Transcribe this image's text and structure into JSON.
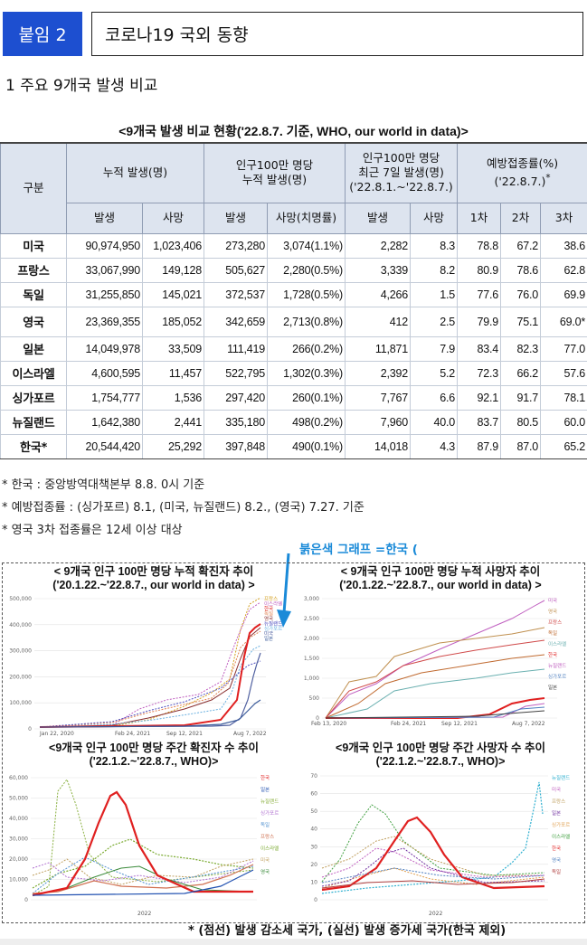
{
  "header": {
    "badge": "붙임 2",
    "title": "코로나19 국외 동향"
  },
  "section": {
    "title": "1 주요 9개국 발생 비교"
  },
  "table": {
    "caption": "<9개국 발생 비교 현황('22.8.7. 기준, WHO, our world in data)>",
    "group_headers": {
      "category": "구분",
      "cumulative": "누적 발생(명)",
      "per_million_line1": "인구100만 명당",
      "per_million_line2": "누적 발생(명)",
      "recent_line1": "인구100만 명당",
      "recent_line2": "최근 7일 발생(명)",
      "recent_line3": "('22.8.1.~'22.8.7.)",
      "vaccine_line1": "예방접종률(%)",
      "vaccine_line2": "('22.8.7.)",
      "vaccine_mark": "*"
    },
    "sub_headers": {
      "cases": "발생",
      "deaths": "사망",
      "pm_cases": "발생",
      "pm_deaths": "사망(치명률)",
      "r_cases": "발생",
      "r_deaths": "사망",
      "dose1": "1차",
      "dose2": "2차",
      "dose3": "3차"
    },
    "rows": [
      {
        "country": "미국",
        "cases": "90,974,950",
        "deaths": "1,023,406",
        "pm_cases": "273,280",
        "pm_deaths": "3,074(1.1%)",
        "r_cases": "2,282",
        "r_deaths": "8.3",
        "d1": "78.8",
        "d2": "67.2",
        "d3": "38.6"
      },
      {
        "country": "프랑스",
        "cases": "33,067,990",
        "deaths": "149,128",
        "pm_cases": "505,627",
        "pm_deaths": "2,280(0.5%)",
        "r_cases": "3,339",
        "r_deaths": "8.2",
        "d1": "80.9",
        "d2": "78.6",
        "d3": "62.8"
      },
      {
        "country": "독일",
        "cases": "31,255,850",
        "deaths": "145,021",
        "pm_cases": "372,537",
        "pm_deaths": "1,728(0.5%)",
        "r_cases": "4,266",
        "r_deaths": "1.5",
        "d1": "77.6",
        "d2": "76.0",
        "d3": "69.9"
      },
      {
        "country": "영국",
        "cases": "23,369,355",
        "deaths": "185,052",
        "pm_cases": "342,659",
        "pm_deaths": "2,713(0.8%)",
        "r_cases": "412",
        "r_deaths": "2.5",
        "d1": "79.9",
        "d2": "75.1",
        "d3": "69.0*"
      },
      {
        "country": "일본",
        "cases": "14,049,978",
        "deaths": "33,509",
        "pm_cases": "111,419",
        "pm_deaths": "266(0.2%)",
        "r_cases": "11,871",
        "r_deaths": "7.9",
        "d1": "83.4",
        "d2": "82.3",
        "d3": "77.0"
      },
      {
        "country": "이스라엘",
        "cases": "4,600,595",
        "deaths": "11,457",
        "pm_cases": "522,795",
        "pm_deaths": "1,302(0.3%)",
        "r_cases": "2,392",
        "r_deaths": "5.2",
        "d1": "72.3",
        "d2": "66.2",
        "d3": "57.6"
      },
      {
        "country": "싱가포르",
        "cases": "1,754,777",
        "deaths": "1,536",
        "pm_cases": "297,420",
        "pm_deaths": "260(0.1%)",
        "r_cases": "7,767",
        "r_deaths": "6.6",
        "d1": "92.1",
        "d2": "91.7",
        "d3": "78.1"
      },
      {
        "country": "뉴질랜드",
        "cases": "1,642,380",
        "deaths": "2,441",
        "pm_cases": "335,180",
        "pm_deaths": "498(0.2%)",
        "r_cases": "7,960",
        "r_deaths": "40.0",
        "d1": "83.7",
        "d2": "80.5",
        "d3": "60.0"
      },
      {
        "country": "한국*",
        "cases": "20,544,420",
        "deaths": "25,292",
        "pm_cases": "397,848",
        "pm_deaths": "490(0.1%)",
        "r_cases": "14,018",
        "r_deaths": "4.3",
        "d1": "87.9",
        "d2": "87.0",
        "d3": "65.2"
      }
    ]
  },
  "notes": [
    "* 한국 : 중앙방역대책본부 8.8. 0시 기준",
    "* 예방접종률 : (싱가포르) 8.1, (미국, 뉴질랜드) 8.2., (영국) 7.27. 기준",
    "* 영국 3차 접종률은 12세 이상 대상"
  ],
  "red_label": "붉은색 그래프 =한국 (",
  "charts": {
    "c1": {
      "title1": "< 9개국 인구 100만 명당 누적 확진자 추이",
      "title2": "('20.1.22.~'22.8.7., our world in data) >",
      "yticks": [
        "500,000",
        "400,000",
        "300,000",
        "200,000",
        "100,000",
        "0"
      ],
      "xticks": [
        "Jan 22, 2020",
        "Feb 24, 2021",
        "Sep 12, 2021",
        "Aug 7, 2022"
      ],
      "legend": [
        "프랑스",
        "이스라엘",
        "한국",
        "독일",
        "영국",
        "뉴질랜드",
        "싱가포르",
        "미국",
        "일본"
      ]
    },
    "c2": {
      "title1": "< 9개국 인구 100만 명당 누적 사망자 추이",
      "title2": "('20.1.22.~'22.8.7., our world in data) >",
      "yticks": [
        "3,000",
        "2,500",
        "2,000",
        "1,500",
        "1,000",
        "500",
        "0"
      ],
      "xticks": [
        "Feb 13, 2020",
        "Feb 24, 2021",
        "Sep 12, 2021",
        "Aug 7, 2022"
      ],
      "legend": [
        "미국",
        "영국",
        "프랑스",
        "독일",
        "이스라엘",
        "한국",
        "뉴질랜드",
        "싱가포르",
        "일본"
      ]
    },
    "c3": {
      "title1": "<9개국 인구 100만 명당 주간 확진자 수 추이",
      "title2": "('22.1.2.~'22.8.7., WHO)>",
      "yticks": [
        "60,000",
        "50,000",
        "40,000",
        "30,000",
        "20,000",
        "10,000",
        "0"
      ],
      "xlabel": "2022",
      "legend": [
        "한국",
        "일본",
        "뉴질랜드",
        "싱가포르",
        "독일",
        "프랑스",
        "이스라엘",
        "미국",
        "영국"
      ]
    },
    "c4": {
      "title1": "<9개국 인구 100만 명당 주간 사망자 수 추이",
      "title2": "('22.1.2.~'22.8.7., WHO)>",
      "yticks": [
        "70",
        "60",
        "50",
        "40",
        "30",
        "20",
        "10",
        "0"
      ],
      "xlabel": "2022",
      "legend": [
        "뉴질랜드",
        "미국",
        "프랑스",
        "일본",
        "싱가포르",
        "이스라엘",
        "한국",
        "영국",
        "독일"
      ]
    }
  },
  "footer": "* (점선) 발생 감소세 국가, (실선) 발생 증가세 국가(한국 제외)"
}
